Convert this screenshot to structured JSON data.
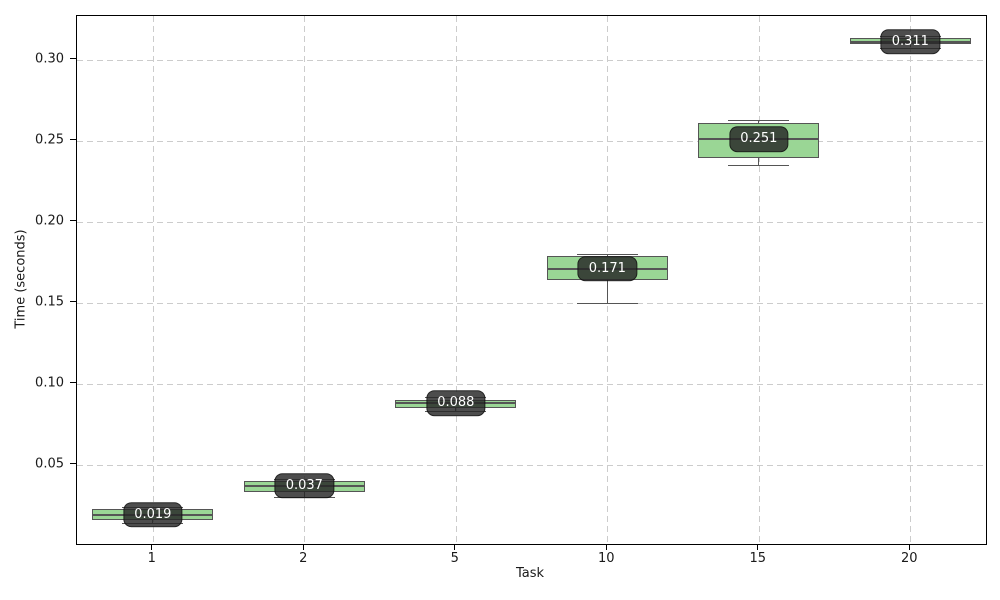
{
  "chart_data": {
    "type": "box",
    "title": "",
    "xlabel": "Task",
    "ylabel": "Time (seconds)",
    "categories": [
      "1",
      "2",
      "5",
      "10",
      "15",
      "20"
    ],
    "yticks": [
      0.05,
      0.1,
      0.15,
      0.2,
      0.25,
      0.3
    ],
    "ytick_labels": [
      "0.05",
      "0.10",
      "0.15",
      "0.20",
      "0.25",
      "0.30"
    ],
    "ylim": [
      0.001,
      0.327
    ],
    "grid": true,
    "legend": "none",
    "series": [
      {
        "category": "1",
        "low": 0.014,
        "q1": 0.0155,
        "median": 0.019,
        "q3": 0.0225,
        "high": 0.024,
        "label": "0.019"
      },
      {
        "category": "2",
        "low": 0.03,
        "q1": 0.033,
        "median": 0.037,
        "q3": 0.04,
        "high": 0.041,
        "label": "0.037"
      },
      {
        "category": "5",
        "low": 0.083,
        "q1": 0.085,
        "median": 0.088,
        "q3": 0.09,
        "high": 0.092,
        "label": "0.088"
      },
      {
        "category": "10",
        "low": 0.15,
        "q1": 0.164,
        "median": 0.171,
        "q3": 0.179,
        "high": 0.18,
        "label": "0.171"
      },
      {
        "category": "15",
        "low": 0.235,
        "q1": 0.239,
        "median": 0.251,
        "q3": 0.261,
        "high": 0.263,
        "label": "0.251"
      },
      {
        "category": "20",
        "low": 0.3075,
        "q1": 0.3095,
        "median": 0.311,
        "q3": 0.3135,
        "high": 0.3145,
        "label": "0.311"
      }
    ],
    "colors": {
      "box_fill": "#9ad695",
      "box_edge": "#555555",
      "whisker": "#555555",
      "grid": "#cccccc",
      "spine": "#000000",
      "badge_bg": "rgba(38,38,38,0.82)",
      "badge_text": "#ffffff"
    }
  }
}
